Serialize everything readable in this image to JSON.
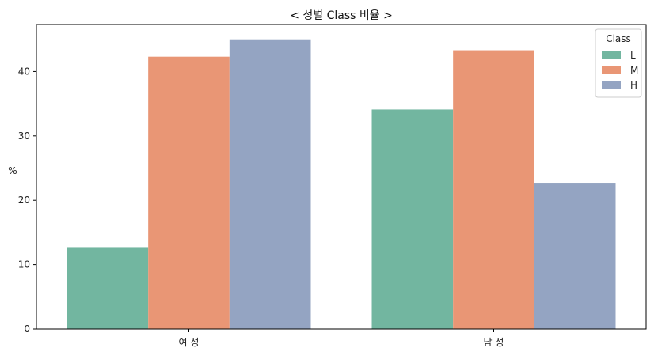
{
  "chart_data": {
    "type": "bar",
    "title": "< 성별 Class 비율 >",
    "xlabel": "",
    "ylabel": "%",
    "categories": [
      "여 성",
      "남 성"
    ],
    "series": [
      {
        "name": "L",
        "color": "#72b6a0",
        "values": [
          12.6,
          34.1
        ]
      },
      {
        "name": "M",
        "color": "#e99675",
        "values": [
          42.3,
          43.3
        ]
      },
      {
        "name": "H",
        "color": "#94a4c2",
        "values": [
          45.0,
          22.6
        ]
      }
    ],
    "ylim": [
      0,
      47.3
    ],
    "yticks": [
      0,
      10,
      20,
      30,
      40
    ],
    "legend": {
      "title": "Class",
      "position": "top-right"
    },
    "grid": false
  }
}
